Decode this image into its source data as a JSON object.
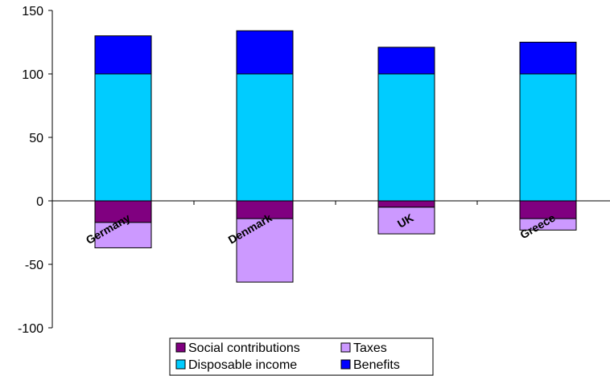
{
  "chart_data": {
    "type": "bar",
    "stacked": true,
    "categories": [
      "Germany",
      "Denmark",
      "UK",
      "Greece"
    ],
    "series": [
      {
        "name": "Social contributions",
        "values": [
          -17,
          -14,
          -5,
          -14
        ],
        "color": "#800080"
      },
      {
        "name": "Taxes",
        "values": [
          -20,
          -50,
          -21,
          -9
        ],
        "color": "#cc99ff"
      },
      {
        "name": "Disposable income",
        "values": [
          100,
          100,
          100,
          100
        ],
        "color": "#00ccff"
      },
      {
        "name": "Benefits",
        "values": [
          30,
          34,
          21,
          25
        ],
        "color": "#0000ff"
      }
    ],
    "yticks": [
      "150",
      "100",
      "50",
      "0",
      "-50",
      "-100"
    ],
    "ylim": [
      -100,
      150
    ],
    "grid": false,
    "legend_position": "bottom"
  }
}
